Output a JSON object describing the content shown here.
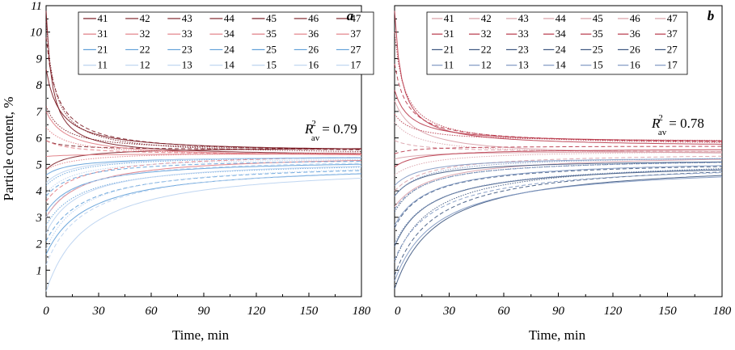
{
  "figure": {
    "ylabel": "Particle content, %"
  },
  "legend": {
    "rows": [
      [
        "41",
        "42",
        "43",
        "44",
        "45",
        "46",
        "47"
      ],
      [
        "31",
        "32",
        "33",
        "34",
        "35",
        "36",
        "37"
      ],
      [
        "21",
        "22",
        "23",
        "24",
        "25",
        "26",
        "27"
      ],
      [
        "11",
        "12",
        "13",
        "14",
        "15",
        "16",
        "17"
      ]
    ],
    "row_colors": [
      "#7a1a22",
      "#e07a82",
      "#5f9fd8",
      "#b9d2ef"
    ],
    "row_colors_b": [
      "#d9a0a8",
      "#b8394a",
      "#3d5680",
      "#7f98c2"
    ]
  },
  "chart_data": [
    {
      "type": "line",
      "panel_letter": "a",
      "xlabel": "Time, min",
      "xlim": [
        0,
        180
      ],
      "ylim": [
        0,
        11
      ],
      "xticks": [
        "0",
        "30",
        "60",
        "90",
        "120",
        "150",
        "180"
      ],
      "yticks": [
        "1",
        "2",
        "3",
        "4",
        "5",
        "6",
        "7",
        "8",
        "9",
        "10",
        "11"
      ],
      "annotation": {
        "r_symbol": "R",
        "superscript": "2",
        "subscript": "av",
        "text": "= 0.79"
      },
      "series_groups": [
        {
          "group": "4x",
          "color": "#7a1a22",
          "start": [
            10.8,
            10.4,
            9.8,
            8.6,
            7.2,
            5.9,
            4.8
          ],
          "end": [
            5.3,
            5.35,
            5.4,
            5.45,
            5.5,
            5.55,
            5.65
          ],
          "knee": 3.5
        },
        {
          "group": "3x",
          "color": "#e07a82",
          "start": [
            7.0,
            6.4,
            5.9,
            5.3,
            4.8,
            3.6,
            3.0
          ],
          "end": [
            5.25,
            5.3,
            5.35,
            5.4,
            5.5,
            5.45,
            5.4
          ],
          "knee": 12
        },
        {
          "group": "2x",
          "color": "#5f9fd8",
          "start": [
            4.6,
            4.2,
            3.8,
            3.2,
            2.7,
            2.1,
            1.6
          ],
          "end": [
            5.3,
            5.35,
            5.25,
            5.2,
            5.15,
            5.1,
            5.05
          ],
          "knee": 15
        },
        {
          "group": "1x",
          "color": "#b9d2ef",
          "start": [
            4.3,
            3.9,
            3.0,
            2.4,
            1.8,
            1.2,
            0.2
          ],
          "end": [
            5.35,
            5.3,
            5.25,
            5.2,
            5.15,
            5.1,
            5.05
          ],
          "knee": 15
        }
      ]
    },
    {
      "type": "line",
      "panel_letter": "b",
      "xlabel": "Time, min",
      "xlim": [
        0,
        180
      ],
      "ylim": [
        0,
        11
      ],
      "xticks": [
        "0",
        "30",
        "60",
        "90",
        "120",
        "150",
        "180"
      ],
      "yticks": [
        "1",
        "2",
        "3",
        "4",
        "5",
        "6",
        "7",
        "8",
        "9",
        "10",
        "11"
      ],
      "annotation": {
        "r_symbol": "R",
        "superscript": "2",
        "subscript": "av",
        "text": "= 0.78"
      },
      "series_groups": [
        {
          "group": "4x",
          "color": "#d9a0a8",
          "start": [
            7.4,
            6.6,
            5.9,
            5.2,
            4.6,
            4.0,
            3.4
          ],
          "end": [
            5.3,
            5.35,
            5.45,
            5.5,
            5.55,
            5.45,
            5.4
          ],
          "knee": 12
        },
        {
          "group": "3x",
          "color": "#b8394a",
          "start": [
            10.8,
            10.0,
            8.8,
            7.8,
            6.9,
            5.4,
            4.9
          ],
          "end": [
            5.65,
            5.7,
            5.75,
            5.8,
            5.85,
            5.7,
            5.6
          ],
          "knee": 4
        },
        {
          "group": "2x",
          "color": "#3d5680",
          "start": [
            3.8,
            3.2,
            2.6,
            1.9,
            1.3,
            0.8,
            0.3
          ],
          "end": [
            5.2,
            5.25,
            5.15,
            5.1,
            5.25,
            5.2,
            5.15
          ],
          "knee": 15
        },
        {
          "group": "1x",
          "color": "#7f98c2",
          "start": [
            4.2,
            3.8,
            3.3,
            2.7,
            2.0,
            1.4,
            0.6
          ],
          "end": [
            5.3,
            5.35,
            5.25,
            5.2,
            5.15,
            5.1,
            5.05
          ],
          "knee": 15
        }
      ]
    }
  ]
}
